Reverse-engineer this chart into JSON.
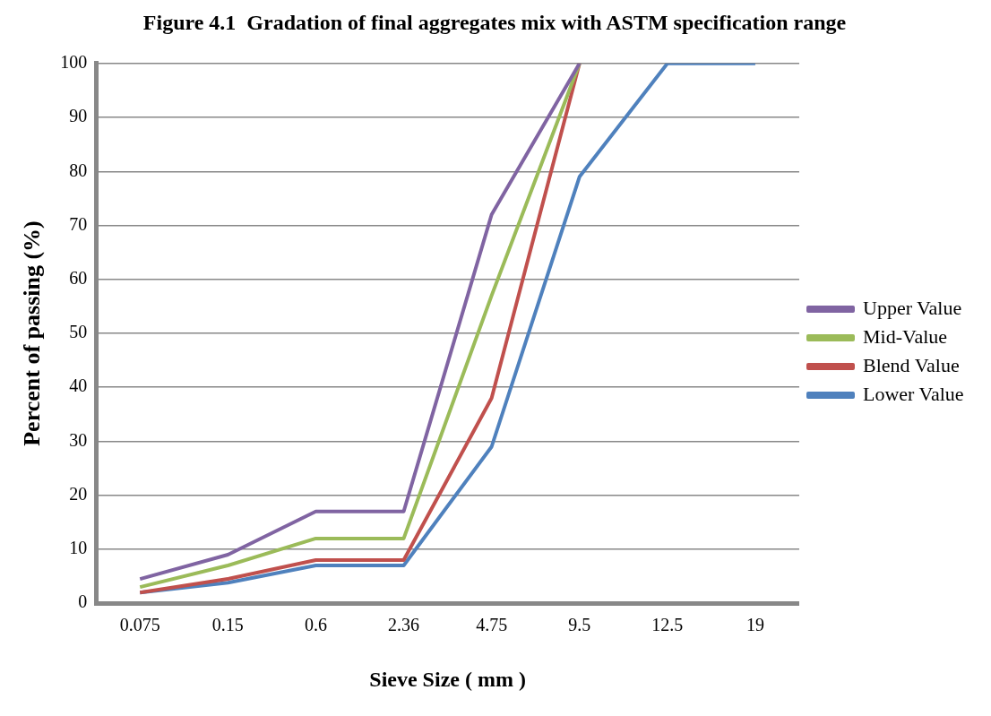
{
  "chart_data": {
    "type": "line",
    "title": "Figure 4.1  Gradation of final aggregates mix with ASTM specification range",
    "xlabel": "Sieve Size ( mm )",
    "ylabel": "Percent of passing (%)",
    "categories": [
      "0.075",
      "0.15",
      "0.6",
      "2.36",
      "4.75",
      "9.5",
      "12.5",
      "19"
    ],
    "ylim": [
      0,
      100
    ],
    "yticks": [
      0,
      10,
      20,
      30,
      40,
      50,
      60,
      70,
      80,
      90,
      100
    ],
    "grid": "y",
    "legend": "right",
    "marker": "none",
    "line_style": "solid",
    "series": [
      {
        "name": "Upper Value",
        "color": "#8064a2",
        "values": [
          4.5,
          9,
          17,
          17,
          72,
          100,
          null,
          null
        ]
      },
      {
        "name": "Mid-Value",
        "color": "#9bbb59",
        "values": [
          3,
          7,
          12,
          12,
          57,
          100,
          null,
          null
        ]
      },
      {
        "name": "Blend Value",
        "color": "#c0504d",
        "values": [
          2,
          4.5,
          8,
          8,
          38,
          100,
          null,
          null
        ]
      },
      {
        "name": "Lower Value",
        "color": "#4f81bd",
        "values": [
          2,
          3.8,
          7,
          7,
          29,
          79,
          100,
          100
        ]
      }
    ]
  }
}
